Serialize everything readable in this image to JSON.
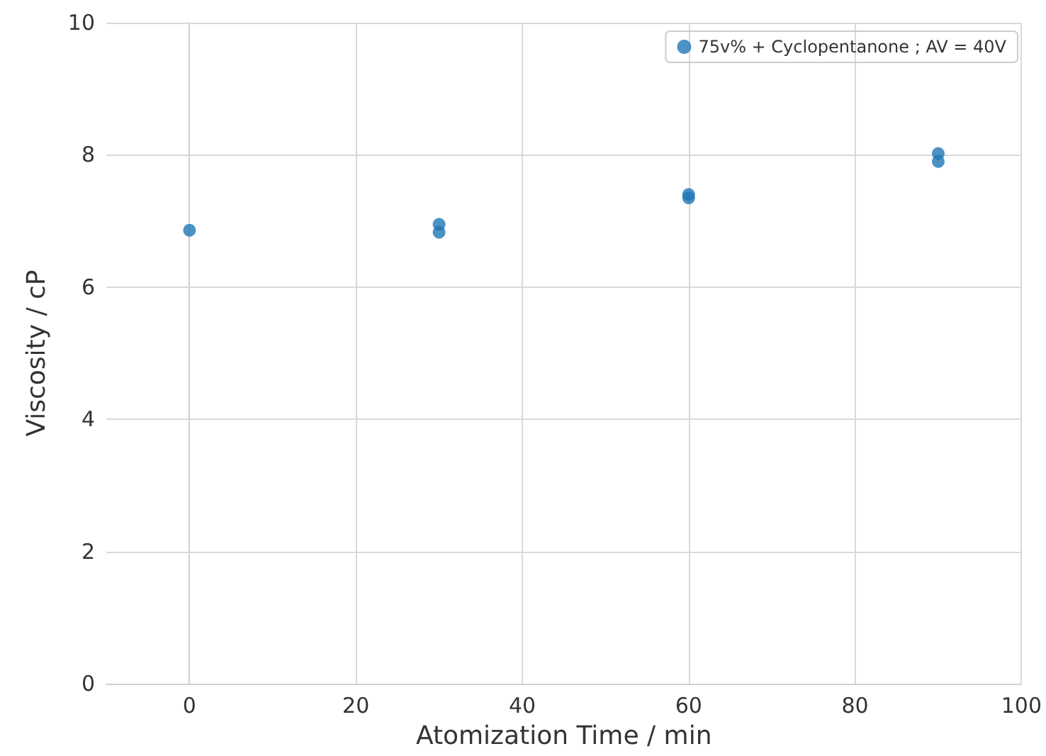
{
  "chart_data": {
    "type": "scatter",
    "xlabel": "Atomization Time / min",
    "ylabel": "Viscosity / cP",
    "series": [
      {
        "name": "75v% + Cyclopentanone ; AV = 40V",
        "color": "#1f77b4",
        "x": [
          0,
          30,
          30,
          60,
          60,
          90,
          90
        ],
        "values": [
          6.86,
          6.95,
          6.83,
          7.4,
          7.35,
          8.02,
          7.9
        ]
      }
    ],
    "xlim": [
      -10,
      100
    ],
    "xticks": [
      0,
      20,
      40,
      60,
      80,
      100
    ],
    "ylim": [
      0,
      10
    ],
    "yticks": [
      0,
      2,
      4,
      6,
      8,
      10
    ],
    "grid": true,
    "legend": "top right",
    "marker": "circle"
  }
}
